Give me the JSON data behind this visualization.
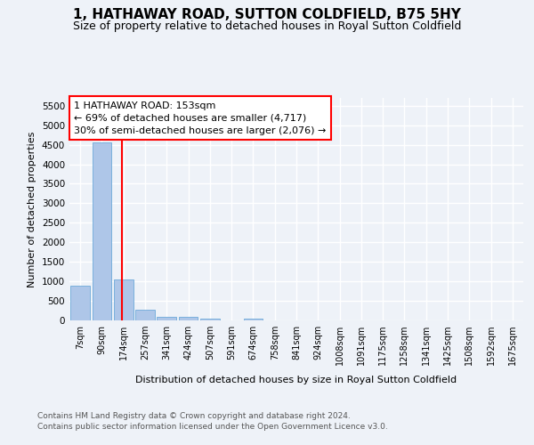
{
  "title1": "1, HATHAWAY ROAD, SUTTON COLDFIELD, B75 5HY",
  "title2": "Size of property relative to detached houses in Royal Sutton Coldfield",
  "xlabel": "Distribution of detached houses by size in Royal Sutton Coldfield",
  "ylabel": "Number of detached properties",
  "footer1": "Contains HM Land Registry data © Crown copyright and database right 2024.",
  "footer2": "Contains public sector information licensed under the Open Government Licence v3.0.",
  "bin_labels": [
    "7sqm",
    "90sqm",
    "174sqm",
    "257sqm",
    "341sqm",
    "424sqm",
    "507sqm",
    "591sqm",
    "674sqm",
    "758sqm",
    "841sqm",
    "924sqm",
    "1008sqm",
    "1091sqm",
    "1175sqm",
    "1258sqm",
    "1341sqm",
    "1425sqm",
    "1508sqm",
    "1592sqm",
    "1675sqm"
  ],
  "bar_values": [
    880,
    4550,
    1060,
    280,
    90,
    85,
    55,
    0,
    48,
    0,
    0,
    0,
    0,
    0,
    0,
    0,
    0,
    0,
    0,
    0,
    0
  ],
  "bar_color": "#aec6e8",
  "bar_edge_color": "#5a9fd4",
  "property_line_label": "1 HATHAWAY ROAD: 153sqm",
  "annotation_line1": "← 69% of detached houses are smaller (4,717)",
  "annotation_line2": "30% of semi-detached houses are larger (2,076) →",
  "annotation_box_color": "white",
  "annotation_box_edge": "red",
  "line_color": "red",
  "ylim": [
    0,
    5700
  ],
  "yticks": [
    0,
    500,
    1000,
    1500,
    2000,
    2500,
    3000,
    3500,
    4000,
    4500,
    5000,
    5500
  ],
  "background_color": "#eef2f8",
  "plot_background": "#eef2f8",
  "grid_color": "white",
  "title1_fontsize": 11,
  "title2_fontsize": 9,
  "bar_linewidth": 0.5
}
